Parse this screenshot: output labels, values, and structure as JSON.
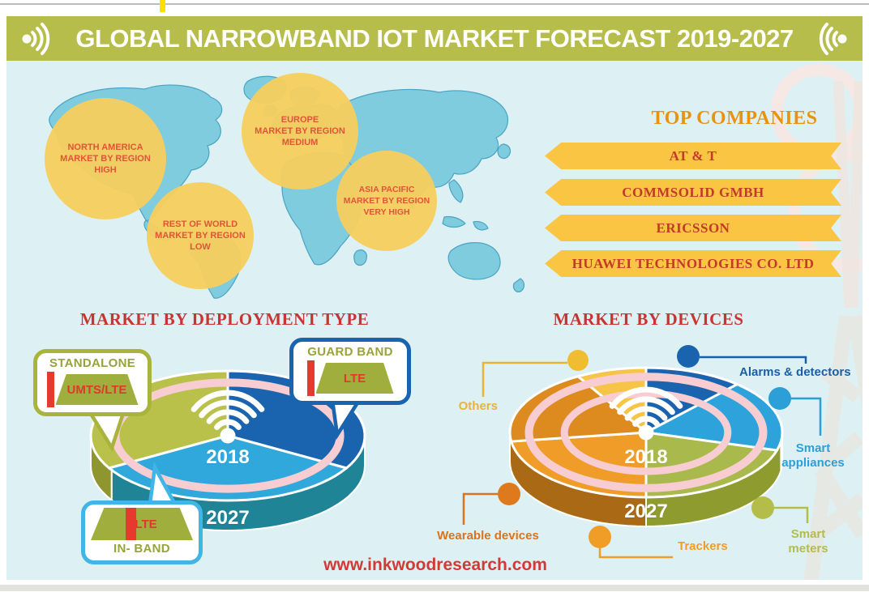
{
  "header": {
    "title": "GLOBAL NARROWBAND IOT MARKET FORECAST 2019-2027"
  },
  "map": {
    "regions": [
      {
        "id": "north-america",
        "line1": "NORTH AMERICA",
        "line2": "MARKET BY REGION",
        "line3": "HIGH"
      },
      {
        "id": "europe",
        "line1": "EUROPE",
        "line2": "MARKET BY REGION",
        "line3": "MEDIUM"
      },
      {
        "id": "rest-of-world",
        "line1": "REST OF WORLD",
        "line2": "MARKET BY REGION",
        "line3": "LOW"
      },
      {
        "id": "asia-pacific",
        "line1": "ASIA PACIFIC",
        "line2": "MARKET BY REGION",
        "line3": "VERY HIGH"
      }
    ]
  },
  "top_companies": {
    "title": "TOP COMPANIES",
    "companies": [
      "AT & T",
      "COMMSOLID GMBH",
      "ERICSSON",
      "HUAWEI TECHNOLOGIES CO. LTD"
    ]
  },
  "deployment": {
    "title": "MARKET BY DEPLOYMENT TYPE",
    "center_year": "2018",
    "rim_year": "2027",
    "bubbles": [
      {
        "id": "standalone",
        "label": "STANDALONE",
        "tag": "UMTS/LTE"
      },
      {
        "id": "guard-band",
        "label": "GUARD BAND",
        "tag": "LTE"
      },
      {
        "id": "in-band",
        "label": "IN- BAND",
        "tag": "LTE"
      }
    ],
    "pie": {
      "segments": [
        {
          "name": "standalone-umts-lte",
          "color": "#b9c14b",
          "from": 240,
          "to": 360
        },
        {
          "name": "guard-band-lte",
          "color": "#1a63ae",
          "from": 0,
          "to": 120
        },
        {
          "name": "in-band-lte",
          "color": "#31a8dc",
          "from": 120,
          "to": 240
        }
      ],
      "rim": [
        {
          "color": "#1f8496",
          "from": 90,
          "to": 238
        },
        {
          "color": "#8f952f",
          "from": 238,
          "to": 270
        }
      ],
      "rings": [
        0.82
      ],
      "ring_color": "#f7cdd2"
    }
  },
  "devices": {
    "title": "MARKET BY DEVICES",
    "center_year": "2018",
    "rim_year": "2027",
    "legend": [
      {
        "label": "Others",
        "color": "#e9b335"
      },
      {
        "label": "Alarms & detectors",
        "color": "#1a5fa5"
      },
      {
        "label": "Smart appliances",
        "color": "#2c9fd8"
      },
      {
        "label": "Smart meters",
        "color": "#b4bd49"
      },
      {
        "label": "Trackers",
        "color": "#f09d28"
      },
      {
        "label": "Wearable devices",
        "color": "#d9731d"
      }
    ],
    "pie": {
      "segments": [
        {
          "name": "alarms-detectors",
          "color": "#1a63ae",
          "from": 0,
          "to": 42
        },
        {
          "name": "smart-appliances",
          "color": "#2ea3db",
          "from": 42,
          "to": 106
        },
        {
          "name": "smart-meters",
          "color": "#aab94c",
          "from": 106,
          "to": 180
        },
        {
          "name": "trackers",
          "color": "#ef9d28",
          "from": 180,
          "to": 262
        },
        {
          "name": "wearable-devices",
          "color": "#dd8a1f",
          "from": 262,
          "to": 330
        },
        {
          "name": "others",
          "color": "#f6c447",
          "from": 330,
          "to": 360
        }
      ],
      "rim": [
        {
          "color": "#1565a8",
          "from": 90,
          "to": 98
        },
        {
          "color": "#8d9b2f",
          "from": 98,
          "to": 180
        },
        {
          "color": "#aa6a15",
          "from": 180,
          "to": 270
        }
      ],
      "rings": [
        0.86,
        0.6
      ],
      "ring_color": "#f7cdd2"
    }
  },
  "footer": {
    "url": "www.inkwoodresearch.com"
  },
  "palette": {
    "header_bg": "#b7bd4b",
    "page_bg": "#ddf1f5",
    "title_red": "#c93330",
    "companies_title": "#e8930f",
    "ribbon_yellow": "#fbc544",
    "ribbon_text": "#c43a28",
    "region_circle": "#f5cd5e",
    "region_text": "#e05438",
    "footer_red": "#d23a35"
  }
}
